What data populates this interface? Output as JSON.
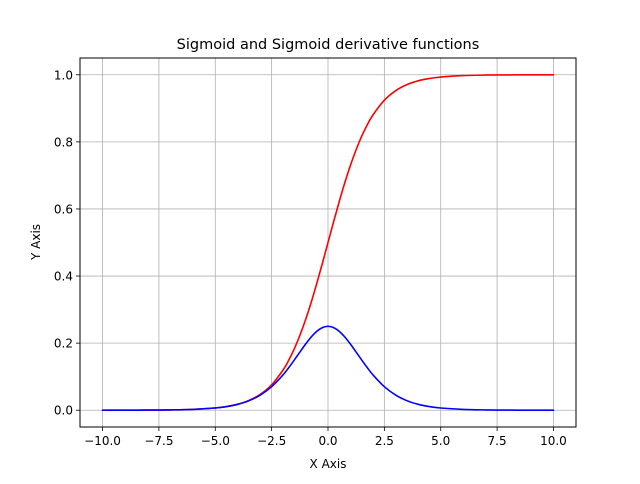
{
  "chart_data": {
    "type": "line",
    "title": "Sigmoid and Sigmoid derivative functions",
    "xlabel": "X Axis",
    "ylabel": "Y Axis",
    "xlim": [
      -11.0,
      11.0
    ],
    "ylim": [
      -0.05,
      1.05
    ],
    "xticks": [
      -10.0,
      -7.5,
      -5.0,
      -2.5,
      0.0,
      2.5,
      5.0,
      7.5,
      10.0
    ],
    "xtick_labels": [
      "−10.0",
      "−7.5",
      "−5.0",
      "−2.5",
      "0.0",
      "2.5",
      "5.0",
      "7.5",
      "10.0"
    ],
    "yticks": [
      0.0,
      0.2,
      0.4,
      0.6,
      0.8,
      1.0
    ],
    "ytick_labels": [
      "0.0",
      "0.2",
      "0.4",
      "0.6",
      "0.8",
      "1.0"
    ],
    "grid": true,
    "legend": "none",
    "x": [
      -10,
      -9,
      -8,
      -7,
      -6,
      -5,
      -4.5,
      -4,
      -3.5,
      -3,
      -2.5,
      -2,
      -1.75,
      -1.5,
      -1.25,
      -1,
      -0.75,
      -0.5,
      -0.25,
      0,
      0.25,
      0.5,
      0.75,
      1,
      1.25,
      1.5,
      1.75,
      2,
      2.5,
      3,
      3.5,
      4,
      4.5,
      5,
      6,
      7,
      8,
      9,
      10
    ],
    "series": [
      {
        "color": "#ff0000",
        "values": [
          4.54e-05,
          0.0001234,
          0.0003354,
          0.0009111,
          0.0024726,
          0.0066929,
          0.0109869,
          0.0179862,
          0.0293122,
          0.0474259,
          0.0758582,
          0.1192029,
          0.1480472,
          0.1824255,
          0.2227001,
          0.2689414,
          0.3208213,
          0.3775407,
          0.4378235,
          0.5,
          0.5621765,
          0.6224593,
          0.6791787,
          0.7310586,
          0.7772999,
          0.8175745,
          0.8519528,
          0.8807971,
          0.9241418,
          0.9525741,
          0.9706878,
          0.9820138,
          0.9890131,
          0.9933071,
          0.9975274,
          0.9990889,
          0.9996646,
          0.9998766,
          0.9999546
        ]
      },
      {
        "color": "#0000ff",
        "values": [
          4.54e-05,
          0.0001234,
          0.0003353,
          0.0009103,
          0.0024665,
          0.0066481,
          0.0108662,
          0.0176627,
          0.028453,
          0.0451767,
          0.0701037,
          0.1049936,
          0.1261294,
          0.1491465,
          0.1731047,
          0.1966119,
          0.2178949,
          0.2350037,
          0.246134,
          0.25,
          0.246134,
          0.2350037,
          0.2178949,
          0.1966119,
          0.1731047,
          0.1491465,
          0.1261294,
          0.1049936,
          0.0701037,
          0.0451767,
          0.028453,
          0.0176627,
          0.0108662,
          0.0066481,
          0.0024665,
          0.0009103,
          0.0003353,
          0.0001234,
          4.54e-05
        ]
      }
    ]
  }
}
